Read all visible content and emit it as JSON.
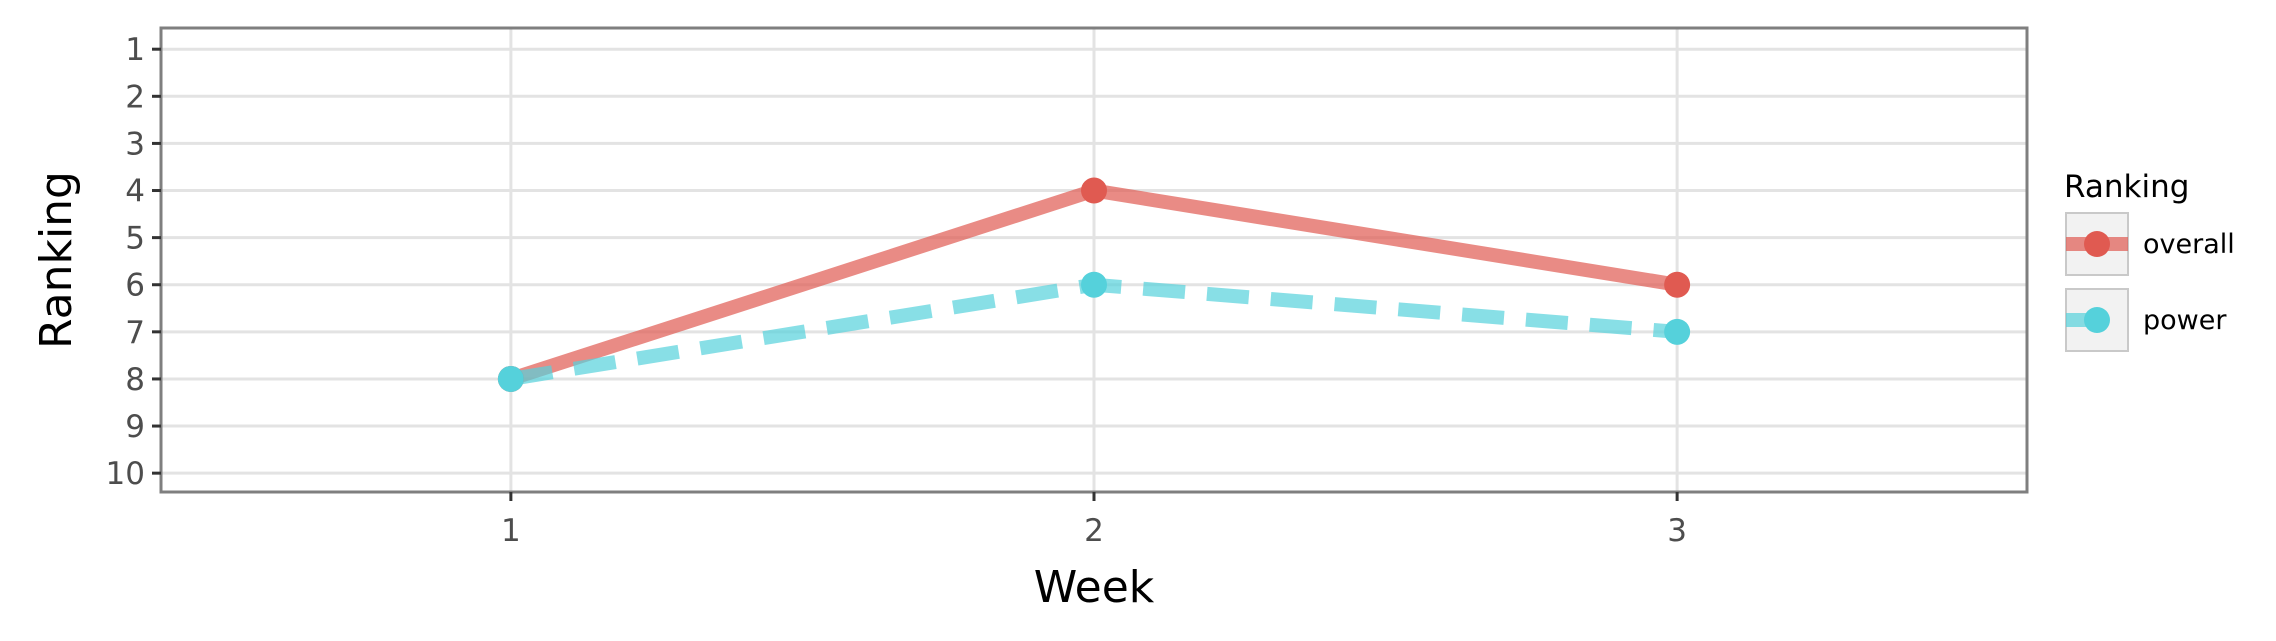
{
  "chart_data": {
    "type": "line",
    "title": "",
    "xlabel": "Week",
    "ylabel": "Ranking",
    "x": [
      1,
      2,
      3
    ],
    "x_ticks": [
      "1",
      "2",
      "3"
    ],
    "xlim": [
      0.4,
      3.6
    ],
    "y_ticks": [
      "1",
      "2",
      "3",
      "4",
      "5",
      "6",
      "7",
      "8",
      "9",
      "10"
    ],
    "ylim": [
      10.4,
      0.55
    ],
    "y_reversed": true,
    "grid": true,
    "legend": {
      "title": "Ranking",
      "position": "right"
    },
    "series": [
      {
        "name": "overall",
        "values": [
          8,
          4,
          6
        ],
        "color": "#e05a51",
        "line_style": "solid"
      },
      {
        "name": "power",
        "values": [
          8,
          6,
          7
        ],
        "color": "#55d1db",
        "line_style": "dashed"
      }
    ]
  }
}
